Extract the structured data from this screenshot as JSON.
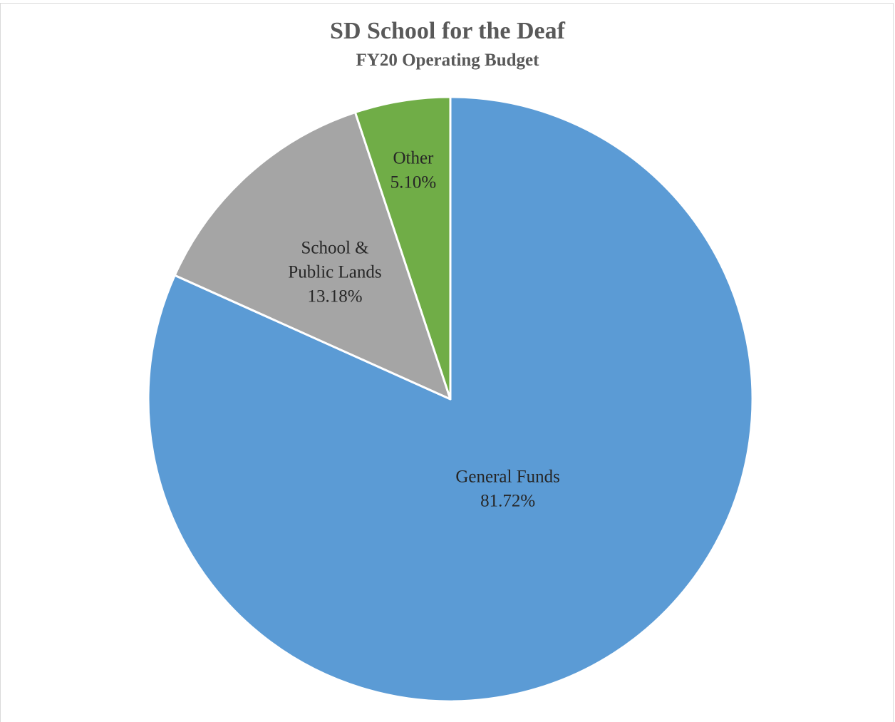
{
  "chart_data": {
    "type": "pie",
    "title": "SD School for the Deaf",
    "subtitle": "FY20 Operating Budget",
    "slices": [
      {
        "label_lines": [
          "General Funds"
        ],
        "value": 81.72,
        "value_label": "81.72%",
        "color": "#5b9bd5"
      },
      {
        "label_lines": [
          "School &",
          "Public Lands"
        ],
        "value": 13.18,
        "value_label": "13.18%",
        "color": "#a5a5a5"
      },
      {
        "label_lines": [
          "Other"
        ],
        "value": 5.1,
        "value_label": "5.10%",
        "color": "#70ad47"
      }
    ],
    "legend": "none",
    "slice_border_color": "#ffffff"
  }
}
